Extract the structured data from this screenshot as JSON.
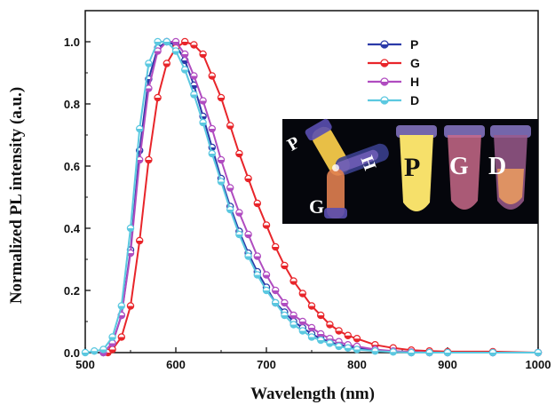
{
  "chart_data": {
    "type": "line",
    "xlabel": "Wavelength (nm)",
    "ylabel": "Normalized PL intensity (a.u.)",
    "xlim": [
      500,
      1000
    ],
    "ylim": [
      0,
      1.1
    ],
    "x_ticks": [
      "500",
      "600",
      "700",
      "800",
      "900",
      "1000"
    ],
    "y_ticks": [
      "0.0",
      "0.2",
      "0.4",
      "0.6",
      "0.8",
      "1.0"
    ],
    "legend_position": "top-right",
    "series": [
      {
        "name": "P",
        "color": "#2b3aa8",
        "x": [
          520,
          530,
          540,
          550,
          560,
          570,
          580,
          590,
          600,
          610,
          620,
          630,
          640,
          650,
          660,
          670,
          680,
          690,
          700,
          710,
          720,
          730,
          740,
          750,
          760,
          770,
          780,
          790,
          800,
          820,
          840,
          860,
          880,
          900,
          950,
          1000
        ],
        "y": [
          0.0,
          0.03,
          0.12,
          0.33,
          0.65,
          0.88,
          0.98,
          1.0,
          0.99,
          0.94,
          0.86,
          0.76,
          0.66,
          0.56,
          0.47,
          0.39,
          0.32,
          0.26,
          0.21,
          0.16,
          0.13,
          0.1,
          0.08,
          0.06,
          0.045,
          0.035,
          0.025,
          0.02,
          0.015,
          0.008,
          0.004,
          0.0,
          0.0,
          0.0,
          0.0,
          0.0
        ]
      },
      {
        "name": "G",
        "color": "#e8252a",
        "x": [
          525,
          530,
          540,
          550,
          560,
          570,
          580,
          590,
          600,
          610,
          620,
          630,
          640,
          650,
          660,
          670,
          680,
          690,
          700,
          710,
          720,
          730,
          740,
          750,
          760,
          770,
          780,
          790,
          800,
          820,
          840,
          860,
          880,
          900,
          950,
          1000
        ],
        "y": [
          0.0,
          0.01,
          0.05,
          0.15,
          0.36,
          0.62,
          0.82,
          0.93,
          0.98,
          1.0,
          0.99,
          0.96,
          0.89,
          0.82,
          0.73,
          0.64,
          0.56,
          0.48,
          0.41,
          0.34,
          0.28,
          0.23,
          0.19,
          0.15,
          0.12,
          0.09,
          0.07,
          0.055,
          0.045,
          0.025,
          0.015,
          0.008,
          0.005,
          0.003,
          0.003,
          0.0
        ]
      },
      {
        "name": "H",
        "color": "#b04cc0",
        "x": [
          520,
          530,
          540,
          550,
          560,
          570,
          580,
          590,
          600,
          610,
          620,
          630,
          640,
          650,
          660,
          670,
          680,
          690,
          700,
          710,
          720,
          730,
          740,
          750,
          760,
          770,
          780,
          790,
          800,
          820,
          840,
          860,
          880,
          900,
          950,
          1000
        ],
        "y": [
          0.0,
          0.03,
          0.12,
          0.32,
          0.62,
          0.85,
          0.97,
          1.0,
          1.0,
          0.96,
          0.89,
          0.81,
          0.72,
          0.62,
          0.53,
          0.45,
          0.38,
          0.31,
          0.25,
          0.2,
          0.16,
          0.12,
          0.1,
          0.08,
          0.06,
          0.045,
          0.035,
          0.025,
          0.02,
          0.01,
          0.005,
          0.002,
          0.0,
          0.0,
          0.0,
          0.0
        ]
      },
      {
        "name": "D",
        "color": "#5bc8e0",
        "x": [
          500,
          510,
          520,
          530,
          540,
          550,
          560,
          570,
          580,
          590,
          600,
          610,
          620,
          630,
          640,
          650,
          660,
          670,
          680,
          690,
          700,
          710,
          720,
          730,
          740,
          750,
          760,
          770,
          780,
          790,
          800,
          820,
          840,
          860,
          880,
          900,
          950,
          1000
        ],
        "y": [
          0.0,
          0.005,
          0.01,
          0.05,
          0.15,
          0.4,
          0.72,
          0.93,
          1.0,
          1.0,
          0.97,
          0.91,
          0.83,
          0.74,
          0.64,
          0.55,
          0.46,
          0.38,
          0.31,
          0.25,
          0.2,
          0.16,
          0.12,
          0.09,
          0.07,
          0.05,
          0.04,
          0.03,
          0.02,
          0.015,
          0.01,
          0.005,
          0.002,
          0.0,
          0.0,
          0.0,
          0.0,
          0.0
        ]
      }
    ]
  },
  "inset": {
    "left_tubes": [
      "P",
      "H",
      "G"
    ],
    "right_tubes": [
      "P",
      "G",
      "D"
    ]
  }
}
